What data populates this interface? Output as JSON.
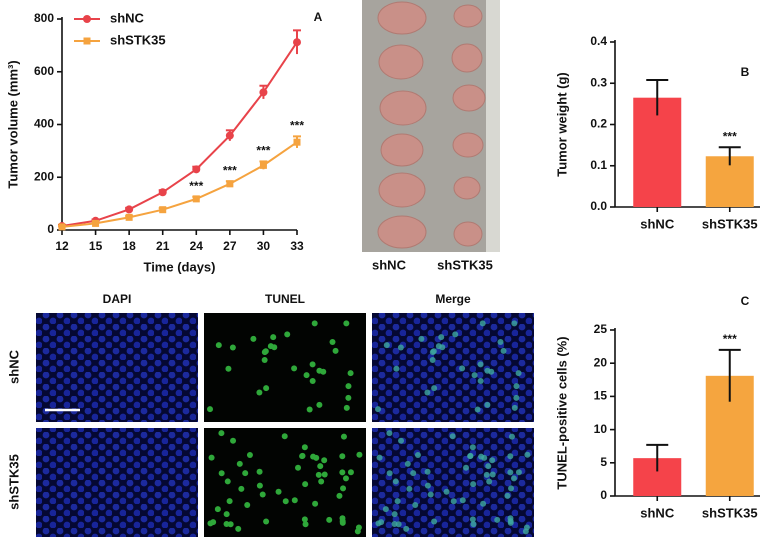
{
  "chart_data": [
    {
      "type": "line",
      "panel": "A",
      "xlabel": "Time (days)",
      "ylabel": "Tumor volume (mm³)",
      "x": [
        12,
        15,
        18,
        21,
        24,
        27,
        30,
        33
      ],
      "xlim": [
        12,
        33
      ],
      "xticks": [
        12,
        15,
        18,
        21,
        24,
        27,
        30,
        33
      ],
      "ylim": [
        0,
        800
      ],
      "yticks": [
        0,
        200,
        400,
        600,
        800
      ],
      "legend": "upper left",
      "series": [
        {
          "name": "shNC",
          "color": "#e8434a",
          "marker": "circle",
          "values": [
            15,
            35,
            78,
            143,
            230,
            358,
            522,
            712
          ],
          "errors": [
            4,
            5,
            6,
            8,
            10,
            20,
            25,
            45
          ]
        },
        {
          "name": "shSTK35",
          "color": "#f5a33f",
          "marker": "square",
          "values": [
            12,
            25,
            48,
            77,
            118,
            175,
            245,
            333
          ],
          "errors": [
            3,
            4,
            5,
            6,
            8,
            10,
            15,
            22
          ]
        }
      ],
      "annotations": [
        {
          "x": 24,
          "text": "***"
        },
        {
          "x": 27,
          "text": "***"
        },
        {
          "x": 30,
          "text": "***"
        },
        {
          "x": 33,
          "text": "***"
        }
      ]
    },
    {
      "type": "bar",
      "panel": "B",
      "ylabel": "Tumor weight (g)",
      "categories": [
        "shNC",
        "shSTK35"
      ],
      "values": [
        0.265,
        0.123
      ],
      "errors": [
        0.043,
        0.022
      ],
      "colors": [
        "#f5434a",
        "#f5a53f"
      ],
      "ylim": [
        0,
        0.4
      ],
      "yticks": [
        {
          "value": 0,
          "label": "0.0"
        },
        0.1,
        0.2,
        0.3,
        0.4
      ],
      "annotations": [
        null,
        "***"
      ]
    },
    {
      "type": "bar",
      "panel": "C",
      "ylabel": "TUNEL-positive cells (%)",
      "categories": [
        "shNC",
        "shSTK35"
      ],
      "values": [
        5.7,
        18.1
      ],
      "errors": [
        2.0,
        3.9
      ],
      "colors": [
        "#f5434a",
        "#f5a53f"
      ],
      "ylim": [
        0,
        25
      ],
      "yticks": [
        0,
        5,
        10,
        15,
        20,
        25
      ],
      "annotations": [
        null,
        "***"
      ]
    }
  ],
  "tumor_photo": {
    "labels": [
      "shNC",
      "shSTK35"
    ]
  },
  "tunel_images": {
    "columns": [
      "DAPI",
      "TUNEL",
      "Merge"
    ],
    "rows": [
      "shNC",
      "shSTK35"
    ]
  }
}
